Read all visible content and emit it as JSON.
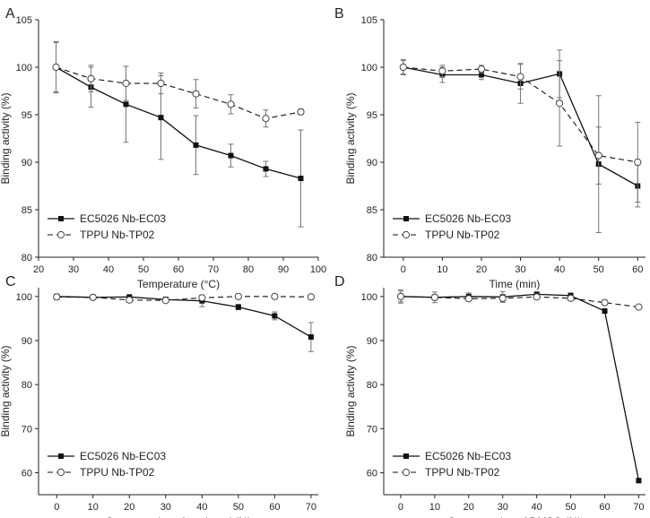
{
  "chart_data": [
    {
      "type": "line",
      "panel": "A",
      "xlabel": "Temperature (°C)",
      "ylabel": "Binding activity (%)",
      "xlim": [
        20,
        100
      ],
      "ylim": [
        80,
        105
      ],
      "xticks": [
        20,
        30,
        40,
        50,
        60,
        70,
        80,
        90,
        100
      ],
      "yticks": [
        80,
        85,
        90,
        95,
        100,
        105
      ],
      "legend_position": "bottom-left",
      "series": [
        {
          "name": "EC5026 Nb-EC03",
          "style": "solid-square",
          "x": [
            25,
            35,
            45,
            55,
            65,
            75,
            85,
            95
          ],
          "values": [
            100,
            97.9,
            96.1,
            94.7,
            91.8,
            90.7,
            89.3,
            88.3
          ],
          "errors": [
            2.6,
            2.1,
            4.0,
            4.4,
            3.1,
            1.2,
            0.8,
            5.1
          ]
        },
        {
          "name": "TPPU Nb-TP02",
          "style": "dashed-open-circle",
          "x": [
            25,
            35,
            45,
            55,
            65,
            75,
            85,
            95
          ],
          "values": [
            100,
            98.8,
            98.3,
            98.3,
            97.2,
            96.1,
            94.6,
            95.3
          ],
          "errors": [
            2.7,
            1.4,
            1.8,
            1.1,
            1.5,
            1.0,
            0.9,
            0.3
          ]
        }
      ]
    },
    {
      "type": "line",
      "panel": "B",
      "xlabel": "Time (min)",
      "ylabel": "Binding activity (%)",
      "xlim": [
        -5,
        62
      ],
      "ylim": [
        80,
        105
      ],
      "xticks": [
        0,
        10,
        20,
        30,
        40,
        50,
        60
      ],
      "yticks": [
        80,
        85,
        90,
        95,
        100,
        105
      ],
      "legend_position": "bottom-left",
      "series": [
        {
          "name": "EC5026 Nb-EC03",
          "style": "solid-square",
          "x": [
            0,
            10,
            20,
            30,
            40,
            50,
            60
          ],
          "values": [
            100,
            99.2,
            99.2,
            98.3,
            99.3,
            89.8,
            87.5
          ],
          "errors": [
            0.7,
            0.8,
            0.5,
            2.1,
            2.5,
            7.2,
            2.2
          ]
        },
        {
          "name": "TPPU Nb-TP02",
          "style": "dashed-open-circle",
          "x": [
            0,
            10,
            20,
            30,
            40,
            50,
            60
          ],
          "values": [
            100,
            99.6,
            99.8,
            99.0,
            96.2,
            90.7,
            90.0
          ],
          "errors": [
            0.8,
            0.6,
            0.4,
            1.3,
            4.5,
            3.0,
            4.2
          ]
        }
      ]
    },
    {
      "type": "line",
      "panel": "C",
      "xlabel": "Concentration of methanol (%)",
      "ylabel": "Binding activity (%)",
      "xlim": [
        -5,
        72
      ],
      "ylim": [
        55,
        102
      ],
      "xticks": [
        0,
        10,
        20,
        30,
        40,
        50,
        60,
        70
      ],
      "yticks": [
        60,
        70,
        80,
        90,
        100
      ],
      "legend_position": "bottom-left",
      "series": [
        {
          "name": "EC5026 Nb-EC03",
          "style": "solid-square",
          "x": [
            0,
            10,
            20,
            30,
            40,
            50,
            60,
            70
          ],
          "values": [
            100,
            99.8,
            99.9,
            99.3,
            99.0,
            97.6,
            95.6,
            90.8
          ],
          "errors": [
            0.5,
            0.4,
            0.4,
            0.6,
            1.3,
            0.6,
            0.9,
            3.3
          ]
        },
        {
          "name": "TPPU Nb-TP02",
          "style": "dashed-open-circle",
          "x": [
            0,
            10,
            20,
            30,
            40,
            50,
            60,
            70
          ],
          "values": [
            99.9,
            99.8,
            99.2,
            99.1,
            99.7,
            100.0,
            100.0,
            99.9
          ],
          "errors": [
            0.6,
            0.4,
            0.5,
            0.4,
            0.4,
            0.3,
            0.3,
            0.5
          ]
        }
      ]
    },
    {
      "type": "line",
      "panel": "D",
      "xlabel": "Concentration of DMSO (%)",
      "ylabel": "Binding activity (%)",
      "xlim": [
        -5,
        72
      ],
      "ylim": [
        55,
        102
      ],
      "xticks": [
        0,
        10,
        20,
        30,
        40,
        50,
        60,
        70
      ],
      "yticks": [
        60,
        70,
        80,
        90,
        100
      ],
      "legend_position": "bottom-left",
      "series": [
        {
          "name": "EC5026 Nb-EC03",
          "style": "solid-square",
          "x": [
            0,
            10,
            20,
            30,
            40,
            50,
            60,
            70
          ],
          "values": [
            100,
            99.8,
            100.0,
            99.9,
            100.5,
            100.2,
            96.7,
            58.2
          ],
          "errors": [
            1.2,
            1.2,
            0.8,
            1.2,
            0.5,
            0.6,
            0.5,
            0.5
          ]
        },
        {
          "name": "TPPU Nb-TP02",
          "style": "dashed-open-circle",
          "x": [
            0,
            10,
            20,
            30,
            40,
            50,
            60,
            70
          ],
          "values": [
            100,
            99.8,
            99.5,
            99.6,
            99.9,
            99.6,
            98.6,
            97.6
          ],
          "errors": [
            1.5,
            0.6,
            0.5,
            0.9,
            0.4,
            0.5,
            0.4,
            0.4
          ]
        }
      ]
    }
  ]
}
